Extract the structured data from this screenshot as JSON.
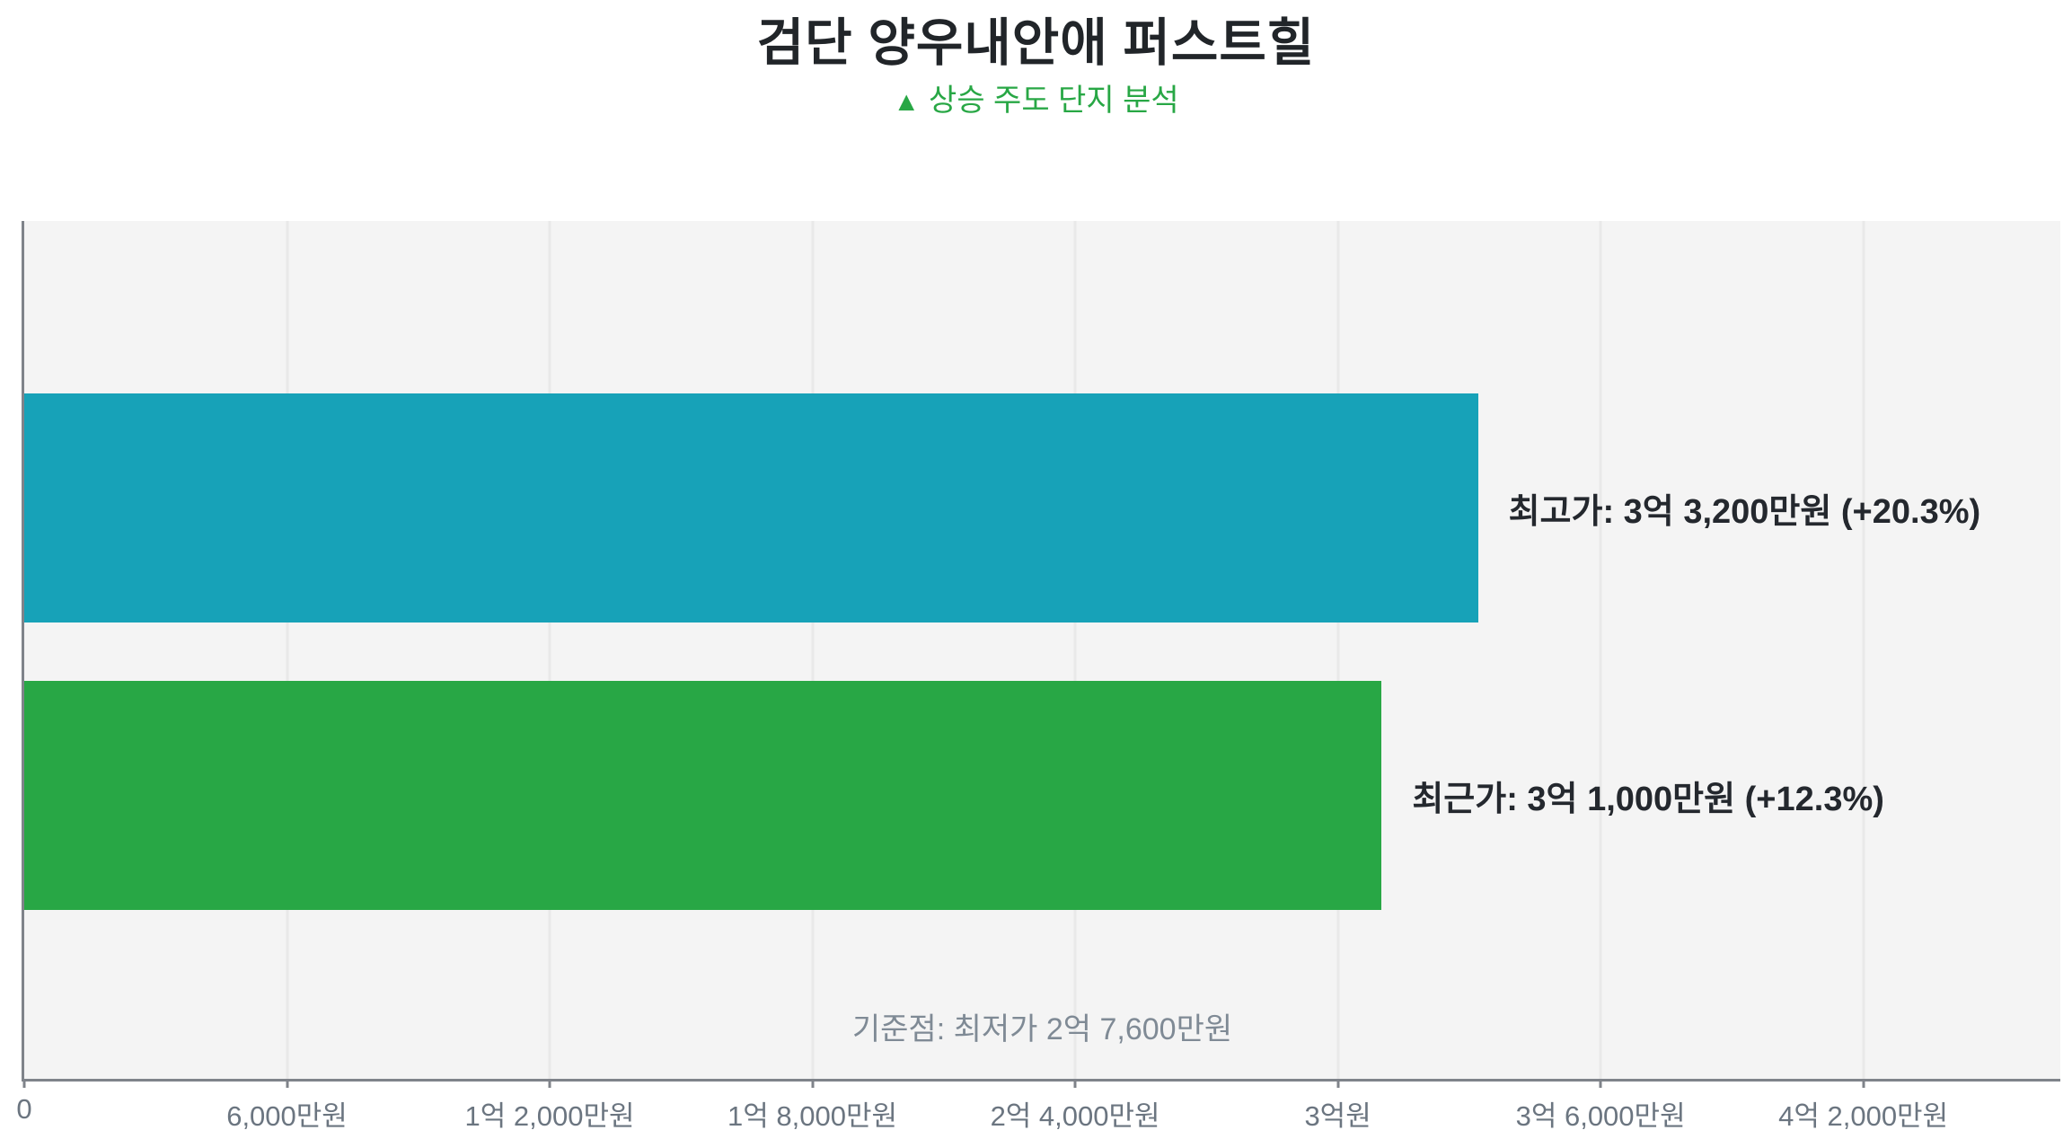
{
  "header": {
    "title": "검단 양우내안애 퍼스트힐",
    "title_color": "#212529",
    "subtitle_icon": "▲",
    "subtitle_text": "상승 주도 단지 분석",
    "subtitle_color": "#28a745"
  },
  "chart_data": {
    "type": "bar",
    "orientation": "horizontal",
    "title": "검단 양우내안애 퍼스트힐",
    "subtitle": "▲ 상승 주도 단지 분석",
    "x_unit": "만원",
    "xlim": [
      0,
      46500
    ],
    "grid": true,
    "plot_background": "#f4f4f4",
    "axis_color": "#7f838a",
    "gridline_color": "#e9e9e9",
    "bar_label_color": "#24282e",
    "tick_label_color": "#6b7580",
    "annotation_color": "#7f8a95",
    "categories": [
      "최고가",
      "최근가"
    ],
    "bars": [
      {
        "key": "highest-price",
        "category": "최고가",
        "value": 33200,
        "pct_change": "+20.3%",
        "label": "최고가: 3억 3,200만원 (+20.3%)",
        "color": "#17a2b8"
      },
      {
        "key": "recent-price",
        "category": "최근가",
        "value": 31000,
        "pct_change": "+12.3%",
        "label": "최근가: 3억 1,000만원 (+12.3%)",
        "color": "#28a745"
      }
    ],
    "baseline": {
      "label": "기준점: 최저가 2억 7,600만원",
      "value": 27600
    },
    "x_ticks": [
      {
        "value": 0,
        "label": "0"
      },
      {
        "value": 6000,
        "label": "6,000만원"
      },
      {
        "value": 12000,
        "label": "1억 2,000만원"
      },
      {
        "value": 18000,
        "label": "1억 8,000만원"
      },
      {
        "value": 24000,
        "label": "2억 4,000만원"
      },
      {
        "value": 30000,
        "label": "3억원"
      },
      {
        "value": 36000,
        "label": "3억 6,000만원"
      },
      {
        "value": 42000,
        "label": "4억 2,000만원"
      }
    ]
  }
}
